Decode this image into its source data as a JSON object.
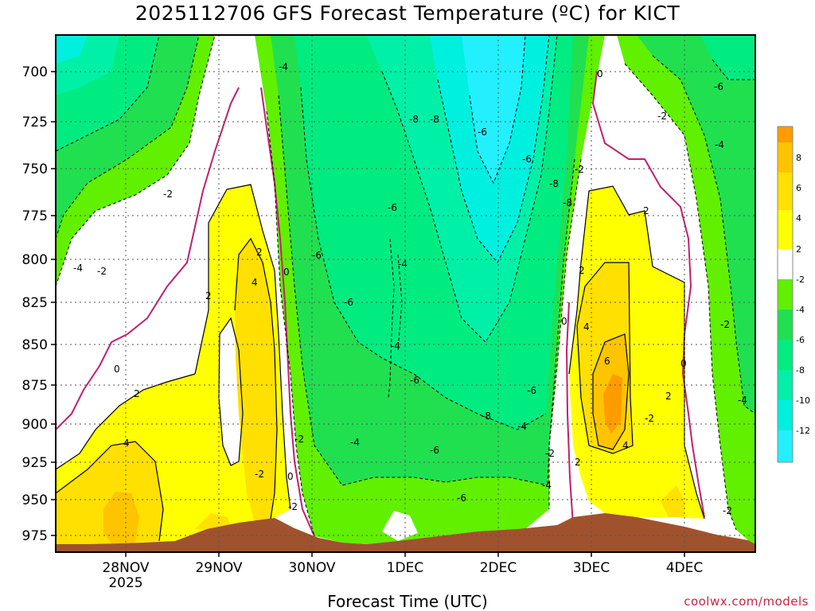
{
  "title": "2025112706 GFS Forecast Temperature (ºC) for KICT",
  "xlabel": "Forecast Time (UTC)",
  "credit": "coolwx.com/models",
  "colors": {
    "lt_-12": "#22f0ff",
    "-12_-10": "#00f0e0",
    "-10_-8": "#00f0a8",
    "-8_-6": "#00ec80",
    "-6_-4": "#20e050",
    "-4_-2": "#60f000",
    "-2_2": "#ffffff",
    "2_4": "#ffff00",
    "4_6": "#ffe000",
    "6_8": "#ffc400",
    "gt_8": "#ff9c00",
    "terrain": "#a0522d",
    "zero_line": "#c0206e"
  },
  "chart_data": {
    "type": "heatmap",
    "title": "2025112706 GFS Forecast Temperature (ºC) for KICT",
    "xlabel": "Forecast Time (UTC)",
    "ylabel": "",
    "x_ticks": [
      "28NOV",
      "29NOV",
      "30NOV",
      "1DEC",
      "2DEC",
      "3DEC",
      "4DEC"
    ],
    "x_sublabel": "2025",
    "y_ticks": [
      700,
      725,
      750,
      775,
      800,
      825,
      850,
      875,
      900,
      925,
      950,
      975
    ],
    "ylim": [
      975,
      675
    ],
    "colorbar_labels": [
      "8",
      "6",
      "4",
      "2",
      "-2",
      "-4",
      "-6",
      "-8",
      "-10",
      "-12"
    ],
    "contour_labels": [
      "-4",
      "-2",
      "2",
      "-2",
      "0",
      "2",
      "4",
      "2",
      "4",
      "0",
      "-6",
      "-6",
      "-4",
      "-4",
      "-6",
      "-8",
      "-8",
      "-8",
      "-6",
      "-2",
      "0",
      "-2",
      "-6",
      "-4",
      "0",
      "2",
      "4",
      "6",
      "4",
      "2",
      "2",
      "0",
      "-2",
      "-4",
      "-6",
      "-6",
      "-8",
      "-8",
      "-6",
      "-4",
      "-2",
      "0",
      "-2",
      "2",
      "-6",
      "-4",
      "-2",
      "-2",
      "-2",
      "-4",
      "-2",
      "-4",
      "-6"
    ],
    "grid": true
  }
}
